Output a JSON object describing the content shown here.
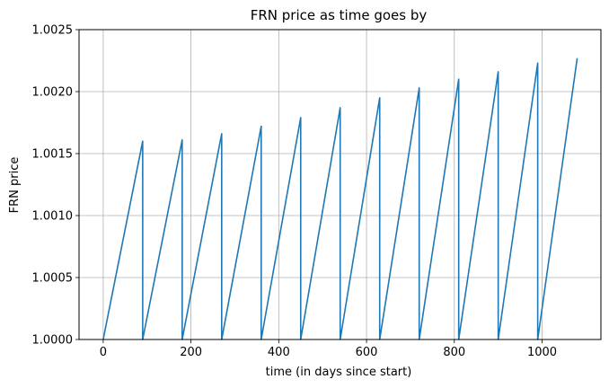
{
  "chart_data": {
    "type": "line",
    "title": "FRN price as time goes by",
    "xlabel": "time (in days since start)",
    "ylabel": "FRN price",
    "xlim": [
      -55,
      1134
    ],
    "ylim": [
      1.0,
      1.0025
    ],
    "x_ticks": [
      0,
      200,
      400,
      600,
      800,
      1000
    ],
    "x_tick_labels": [
      "0",
      "200",
      "400",
      "600",
      "800",
      "1000"
    ],
    "y_ticks": [
      1.0,
      1.0005,
      1.001,
      1.0015,
      1.002,
      1.0025
    ],
    "y_tick_labels": [
      "1.0000",
      "1.0005",
      "1.0010",
      "1.0015",
      "1.0020",
      "1.0025"
    ],
    "grid": true,
    "color": "#1f77b4",
    "series": [
      {
        "name": "",
        "points": [
          [
            0,
            1.0
          ],
          [
            90,
            1.0016
          ],
          [
            90,
            1.0
          ],
          [
            180,
            1.00161
          ],
          [
            180,
            1.0
          ],
          [
            270,
            1.00166
          ],
          [
            270,
            1.0
          ],
          [
            360,
            1.00172
          ],
          [
            360,
            1.0
          ],
          [
            450,
            1.00179
          ],
          [
            450,
            1.0
          ],
          [
            540,
            1.00187
          ],
          [
            540,
            1.0
          ],
          [
            630,
            1.00195
          ],
          [
            630,
            1.0
          ],
          [
            720,
            1.00203
          ],
          [
            720,
            1.0
          ],
          [
            810,
            1.0021
          ],
          [
            810,
            1.0
          ],
          [
            900,
            1.00216
          ],
          [
            900,
            1.0
          ],
          [
            990,
            1.00223
          ],
          [
            990,
            1.0
          ],
          [
            1080,
            1.00227
          ]
        ]
      }
    ]
  }
}
